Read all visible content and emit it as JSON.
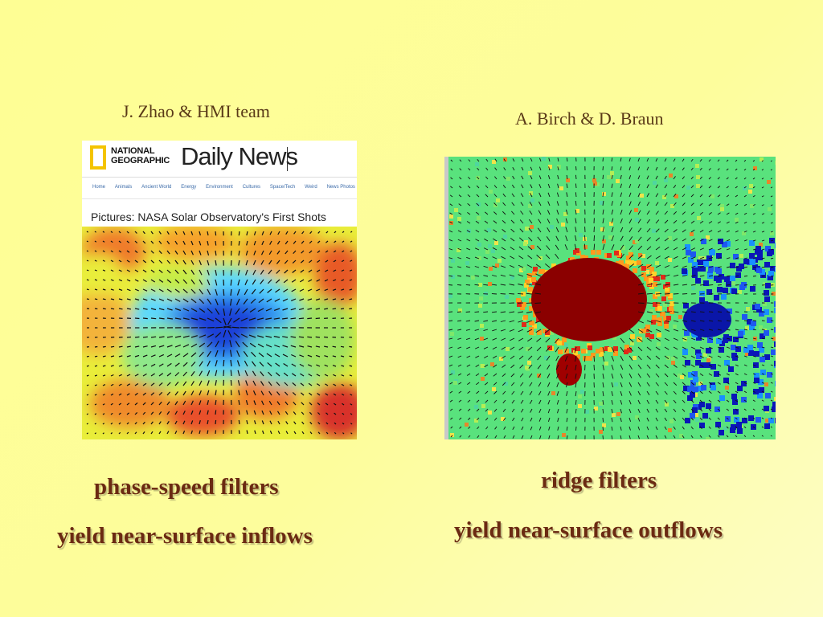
{
  "left": {
    "credit": "J. Zhao & HMI team",
    "brand": [
      "NATIONAL",
      "GEOGRAPHIC"
    ],
    "title": "Daily News",
    "nav": [
      "Home",
      "Animals",
      "Ancient World",
      "Energy",
      "Environment",
      "Cultures",
      "Space/Tech",
      "Weird",
      "News Photos"
    ],
    "caption": "Pictures: NASA Solar Observatory's First Shots",
    "line1": "phase-speed filters",
    "line2": "yield near-surface inflows"
  },
  "right": {
    "credit": "A. Birch & D. Braun",
    "line1": "ridge filters",
    "line2": "yield near-surface outflows"
  },
  "colors": {
    "caption": "#6b2a12",
    "credit": "#5a3a18",
    "brand_yellow": "#f4c400"
  }
}
